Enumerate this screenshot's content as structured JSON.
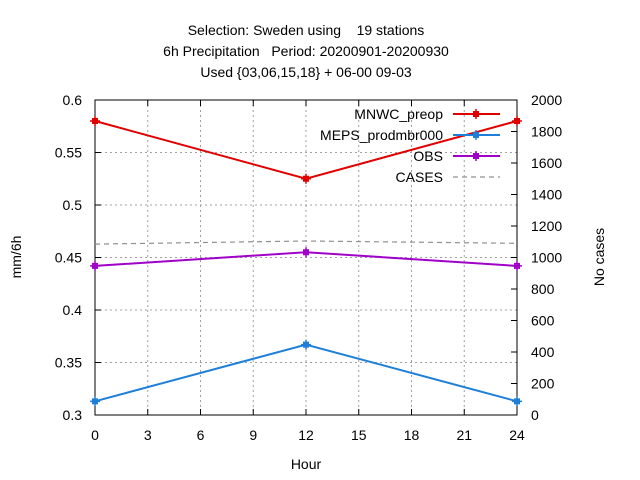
{
  "chart_data": {
    "type": "line",
    "title_lines": [
      "Selection: Sweden using    19 stations",
      "6h Precipitation   Period: 20200901-20200930",
      "Used {03,06,15,18} + 06-00 09-03"
    ],
    "xlabel": "Hour",
    "ylabel": "mm/6h",
    "y2label": "No cases",
    "xlim": [
      0,
      24
    ],
    "ylim": [
      0.3,
      0.6
    ],
    "y2lim": [
      0,
      2000
    ],
    "x_ticks": [
      0,
      3,
      6,
      9,
      12,
      15,
      18,
      21,
      24
    ],
    "x_tick_labels": [
      "0",
      "3",
      "6",
      "9",
      "12",
      "15",
      "18",
      "21",
      "24"
    ],
    "y_ticks": [
      0.3,
      0.35,
      0.4,
      0.45,
      0.5,
      0.55,
      0.6
    ],
    "y_tick_labels": [
      "0.3",
      "0.35",
      "0.4",
      "0.45",
      "0.5",
      "0.55",
      "0.6"
    ],
    "y2_ticks": [
      0,
      200,
      400,
      600,
      800,
      1000,
      1200,
      1400,
      1600,
      1800,
      2000
    ],
    "y2_tick_labels": [
      "0",
      "200",
      "400",
      "600",
      "800",
      "1000",
      "1200",
      "1400",
      "1600",
      "1800",
      "2000"
    ],
    "grid": true,
    "legend_position": "top-right",
    "series": [
      {
        "name": "MNWC_preop",
        "axis": "y",
        "color": "#e00000",
        "style": "solid",
        "marker": true,
        "x": [
          0,
          12,
          24
        ],
        "values": [
          0.58,
          0.525,
          0.58
        ]
      },
      {
        "name": "MEPS_prodmbr000",
        "axis": "y",
        "color": "#1e7fd8",
        "style": "solid",
        "marker": true,
        "x": [
          0,
          12,
          24
        ],
        "values": [
          0.313,
          0.367,
          0.313
        ]
      },
      {
        "name": "OBS",
        "axis": "y",
        "color": "#a000c8",
        "style": "solid",
        "marker": true,
        "x": [
          0,
          12,
          24
        ],
        "values": [
          0.442,
          0.455,
          0.442
        ]
      },
      {
        "name": "CASES",
        "axis": "y2",
        "color": "#909090",
        "style": "dashed",
        "marker": false,
        "x": [
          0,
          12,
          24
        ],
        "values": [
          1085,
          1105,
          1090
        ]
      }
    ]
  }
}
